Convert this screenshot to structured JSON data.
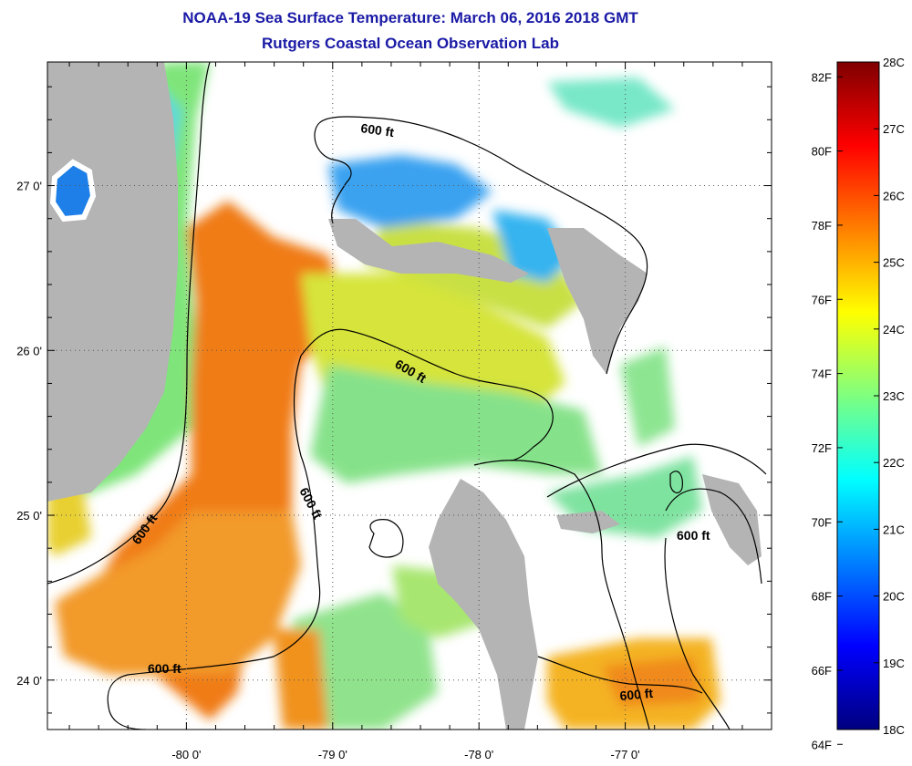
{
  "header": {
    "title": "NOAA-19 Sea Surface Temperature:  March 06, 2016 2018 GMT",
    "subtitle": "Rutgers Coastal Ocean Observation Lab"
  },
  "map": {
    "lon_ticks": [
      "-80 0'",
      "-79 0'",
      "-78 0'",
      "-77 0'"
    ],
    "lat_ticks": [
      "27 0'",
      "26 0'",
      "25 0'",
      "24 0'"
    ],
    "lon_values": [
      -80,
      -79,
      -78,
      -77
    ],
    "lat_values": [
      27,
      26,
      25,
      24
    ],
    "lon_range": [
      -80.95,
      -76.0
    ],
    "lat_range": [
      23.7,
      27.75
    ],
    "contour_label": "600 ft",
    "colors": {
      "land": "#b4b4b4",
      "no_data": "#ffffff",
      "grid": "#555555"
    }
  },
  "colorbar": {
    "fahrenheit_labels": [
      "82F",
      "80F",
      "78F",
      "76F",
      "74F",
      "72F",
      "70F",
      "68F",
      "66F",
      "64F"
    ],
    "celsius_labels": [
      "28C",
      "27C",
      "26C",
      "25C",
      "24C",
      "23C",
      "22C",
      "21C",
      "20C",
      "19C",
      "18C"
    ],
    "range_c": [
      18,
      28
    ],
    "stops": [
      "#00007f",
      "#0000ff",
      "#007fff",
      "#00ffff",
      "#7fff7f",
      "#ffff00",
      "#ff7f00",
      "#ff0000",
      "#7f0000"
    ]
  }
}
